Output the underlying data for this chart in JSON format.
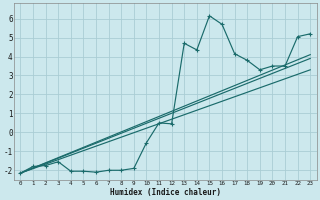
{
  "xlabel": "Humidex (Indice chaleur)",
  "bg_color": "#cce8ed",
  "grid_color": "#aacdd4",
  "line_color": "#1a6b6b",
  "marker": "+",
  "xlim": [
    -0.5,
    23.5
  ],
  "ylim": [
    -2.5,
    6.8
  ],
  "yticks": [
    -2,
    -1,
    0,
    1,
    2,
    3,
    4,
    5,
    6
  ],
  "xticks": [
    0,
    1,
    2,
    3,
    4,
    5,
    6,
    7,
    8,
    9,
    10,
    11,
    12,
    13,
    14,
    15,
    16,
    17,
    18,
    19,
    20,
    21,
    22,
    23
  ],
  "curve_x": [
    0,
    1,
    2,
    3,
    4,
    5,
    6,
    7,
    8,
    9,
    10,
    11,
    12,
    13,
    14,
    15,
    16,
    17,
    18,
    19,
    20,
    21,
    22,
    23
  ],
  "curve_y": [
    -2.15,
    -1.8,
    -1.75,
    -1.55,
    -2.05,
    -2.05,
    -2.1,
    -2.0,
    -2.0,
    -1.9,
    -0.55,
    0.5,
    0.45,
    4.7,
    4.35,
    6.15,
    5.7,
    4.15,
    3.8,
    3.3,
    3.5,
    3.5,
    5.05,
    5.2
  ],
  "line1_x": [
    0,
    23
  ],
  "line1_y": [
    -2.15,
    3.3
  ],
  "line2_x": [
    0,
    23
  ],
  "line2_y": [
    -2.15,
    3.9
  ],
  "line3_x": [
    0,
    23
  ],
  "line3_y": [
    -2.15,
    4.1
  ]
}
